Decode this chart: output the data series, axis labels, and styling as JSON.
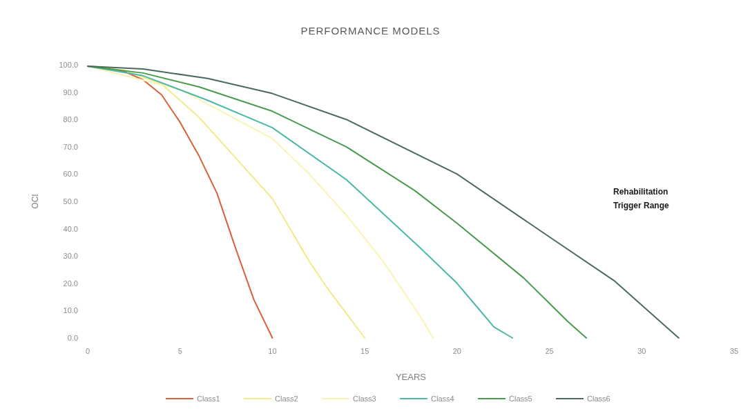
{
  "chart_data": {
    "type": "line",
    "title": "PERFORMANCE MODELS",
    "xlabel": "YEARS",
    "ylabel": "OCI",
    "xlim": [
      0,
      35
    ],
    "xticks": [
      0,
      5,
      10,
      15,
      20,
      25,
      30,
      35
    ],
    "ylim": [
      0,
      100
    ],
    "yticks": [
      {
        "value": 0,
        "label": "0.0"
      },
      {
        "value": 10,
        "label": "10.0"
      },
      {
        "value": 20,
        "label": "20.0"
      },
      {
        "value": 30,
        "label": "30.0"
      },
      {
        "value": 40,
        "label": "40.0"
      },
      {
        "value": 50,
        "label": "50.0"
      },
      {
        "value": 60,
        "label": "60.0"
      },
      {
        "value": 70,
        "label": "70.0"
      },
      {
        "value": 80,
        "label": "80.0"
      },
      {
        "value": 90,
        "label": "90.0"
      },
      {
        "value": 100,
        "label": "100.0"
      }
    ],
    "grid": false,
    "legend": "bottom",
    "marker": "none",
    "line_style": "solid",
    "annotations": [
      "Rehabilitation Trigger Range"
    ],
    "series": [
      {
        "name": "Class1",
        "color": "#d9603b",
        "x": [
          0,
          1,
          2,
          3,
          4,
          5,
          6,
          7,
          8,
          9,
          10
        ],
        "values": [
          99.5,
          99,
          97.5,
          94.5,
          89,
          79,
          67,
          53,
          33,
          14,
          0
        ]
      },
      {
        "name": "Class2",
        "color": "#f2eb8c",
        "x": [
          0,
          2,
          4,
          6,
          8,
          10,
          12,
          13,
          14,
          15
        ],
        "values": [
          99.5,
          98,
          93,
          81,
          66,
          51,
          28,
          18,
          9,
          0
        ]
      },
      {
        "name": "Class3",
        "color": "#faf4b4",
        "x": [
          0,
          5,
          10,
          12,
          14,
          16,
          18,
          18.7
        ],
        "values": [
          99.5,
          91,
          73,
          60,
          45,
          28,
          8,
          0
        ]
      },
      {
        "name": "Class4",
        "color": "#4bb8a8",
        "x": [
          0,
          3,
          6.5,
          10,
          14,
          18,
          20,
          21,
          22,
          23
        ],
        "values": [
          99.5,
          96,
          87,
          77,
          58,
          33,
          20,
          12,
          4,
          0
        ]
      },
      {
        "name": "Class5",
        "color": "#4a9a4a",
        "x": [
          0,
          3,
          6,
          10,
          14,
          17.7,
          20,
          23.6,
          26,
          27
        ],
        "values": [
          99.5,
          97,
          92,
          83,
          70,
          54,
          42,
          22,
          6,
          0
        ]
      },
      {
        "name": "Class6",
        "color": "#4a6a5a",
        "x": [
          0,
          3,
          6.5,
          10,
          14,
          20,
          25,
          28.5,
          31,
          32
        ],
        "values": [
          99.5,
          98.5,
          95,
          89.5,
          80,
          60,
          37,
          21,
          6,
          0
        ]
      }
    ]
  }
}
